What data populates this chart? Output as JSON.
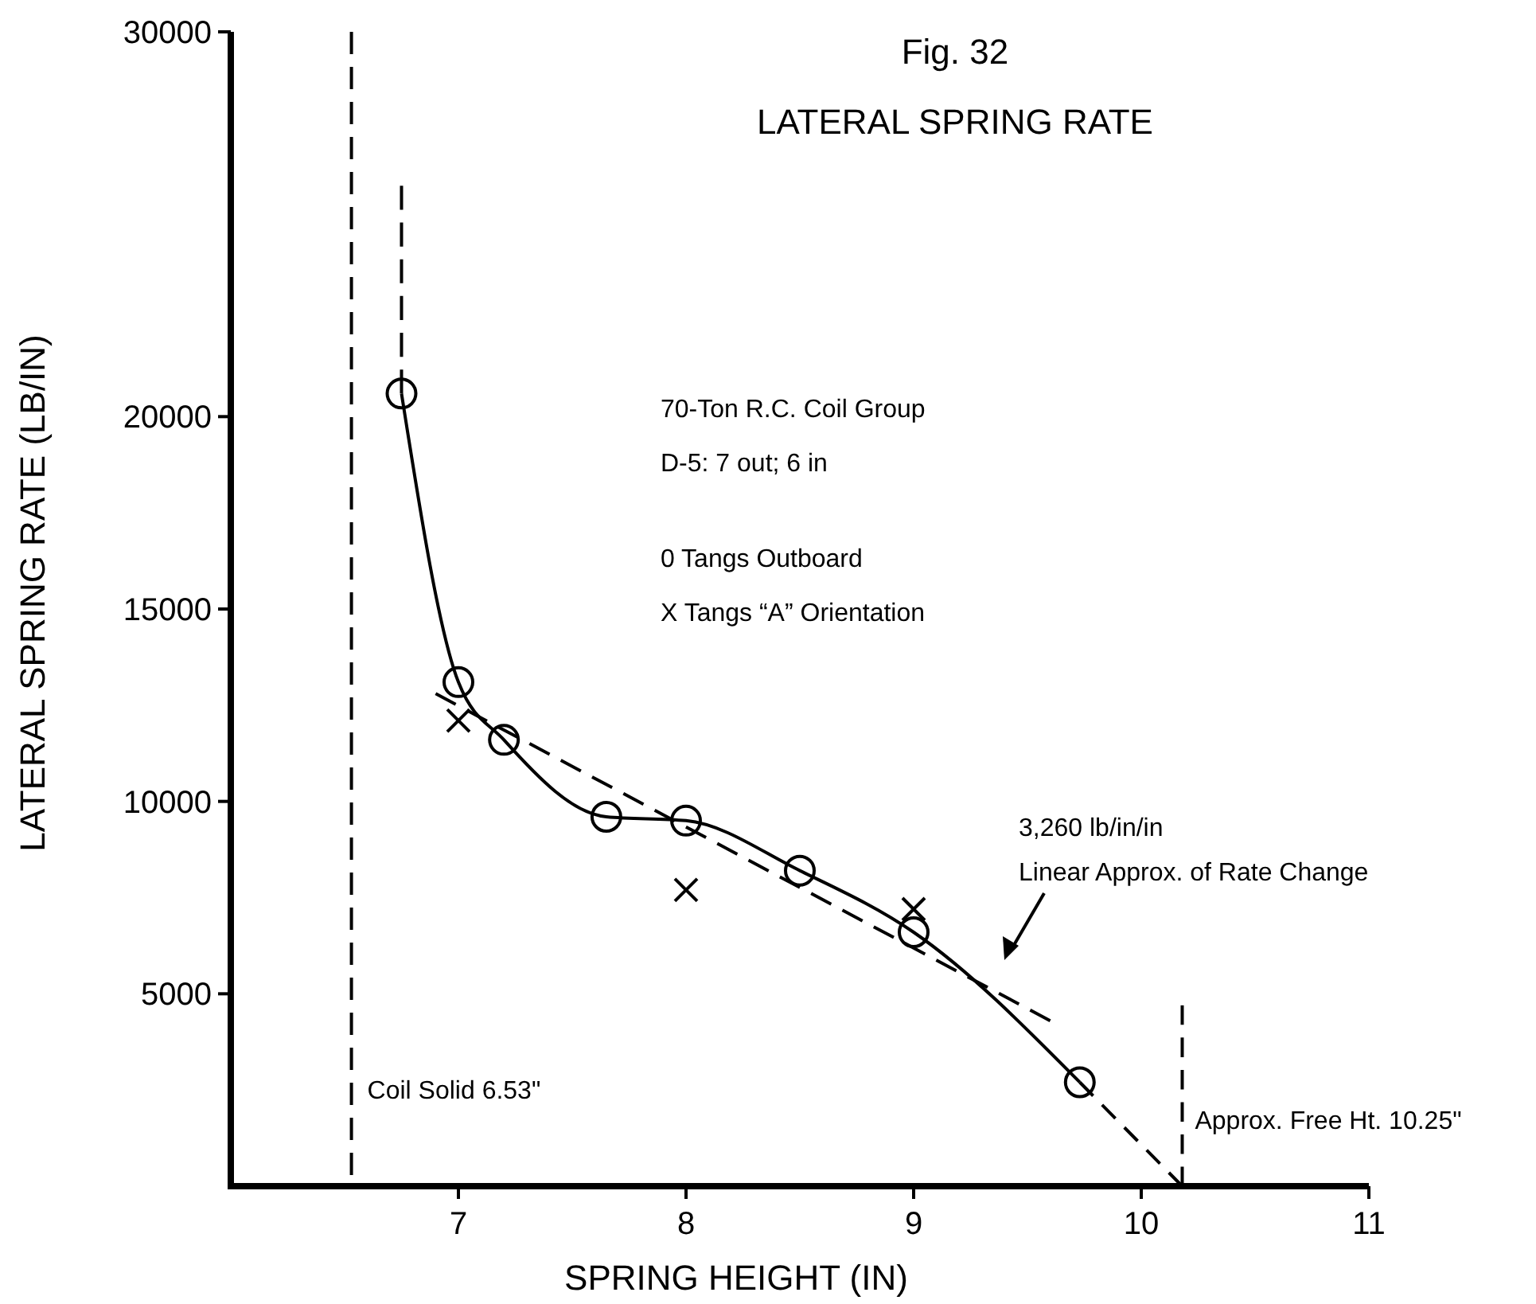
{
  "chart_data": {
    "type": "scatter",
    "subtitle": "Fig. 32",
    "title": "LATERAL SPRING RATE",
    "xlabel": "SPRING HEIGHT (IN)",
    "ylabel": "LATERAL SPRING RATE (LB/IN)",
    "xlim": [
      6,
      11
    ],
    "xticks": [
      7,
      8,
      9,
      10,
      11
    ],
    "ylim": [
      0,
      30000
    ],
    "yticks": [
      5000,
      10000,
      15000,
      20000,
      30000
    ],
    "grid": false,
    "series": [
      {
        "marker": "circle",
        "color": "#000000",
        "x": [
          6.75,
          7.0,
          7.2,
          7.65,
          8.0,
          8.5,
          9.0,
          9.73
        ],
        "values": [
          20600,
          13100,
          11600,
          9600,
          9500,
          8200,
          6600,
          2700
        ]
      },
      {
        "marker": "cross",
        "color": "#000000",
        "x": [
          7.0,
          8.0,
          9.0
        ],
        "values": [
          12100,
          7700,
          7200
        ]
      },
      {
        "type": "line",
        "marker": "none",
        "line_style": "solid",
        "color": "#000000",
        "x": [
          6.75,
          7.0,
          7.2,
          7.65,
          8.0,
          8.5,
          9.0,
          9.73
        ],
        "values": [
          20600,
          13100,
          11600,
          9600,
          9500,
          8200,
          6600,
          2700
        ]
      },
      {
        "type": "line",
        "marker": "none",
        "line_style": "dashed",
        "color": "#000000",
        "x": [
          6.75,
          6.75
        ],
        "values": [
          20600,
          26000
        ]
      },
      {
        "type": "line",
        "marker": "none",
        "line_style": "dashed",
        "color": "#000000",
        "x": [
          9.73,
          10.18
        ],
        "values": [
          2700,
          0
        ]
      },
      {
        "type": "line",
        "marker": "none",
        "line_style": "dashed",
        "color": "#000000",
        "x": [
          6.9,
          9.6
        ],
        "values": [
          12800,
          4300
        ]
      },
      {
        "type": "line",
        "marker": "none",
        "line_style": "dashed",
        "color": "#000000",
        "x": [
          10.18,
          10.18
        ],
        "values": [
          0,
          4700
        ]
      }
    ],
    "ref_lines": [
      {
        "axis": "x",
        "value": 6.53,
        "label": "Coil Solid 6.53\"",
        "line_style": "dashed",
        "color": "#000000"
      }
    ],
    "annotations": [
      "70-Ton R.C. Coil Group",
      "D-5: 7 out; 6 in",
      "0 Tangs Outboard",
      "X Tangs “A” Orientation",
      "3,260 lb/in/in\nLinear Approx. of Rate Change",
      {
        "text": "Approx. Free Ht. 10.25\"",
        "x": 10.18,
        "y": 1500
      }
    ]
  }
}
